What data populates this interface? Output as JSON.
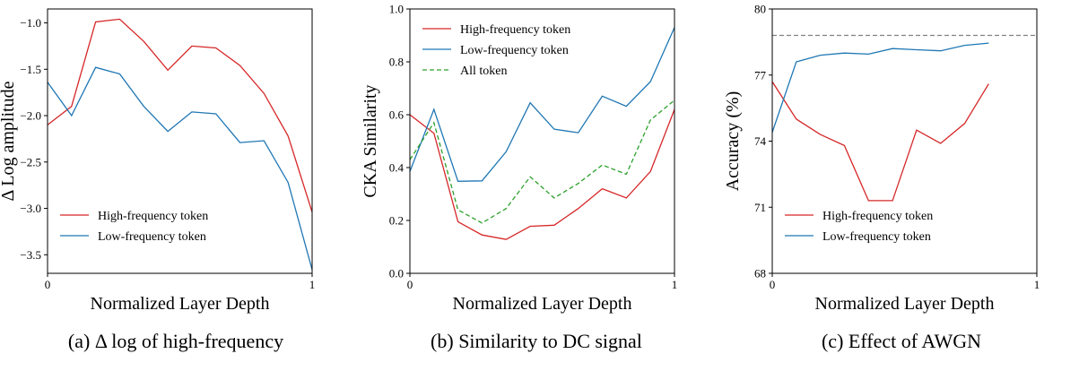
{
  "chart_data": [
    {
      "type": "line",
      "caption": "(a) Δ log of high-frequency",
      "xlabel": "Normalized Layer Depth",
      "ylabel": "Δ Log amplitude",
      "xlim": [
        0,
        1
      ],
      "ylim": [
        -3.7,
        -0.85
      ],
      "xticks": [
        "0",
        "1"
      ],
      "yticks": [
        -1.0,
        -1.5,
        -2.0,
        -2.5,
        -3.0,
        -3.5
      ],
      "ytick_labels": [
        "−1.0",
        "−1.5",
        "−2.0",
        "−2.5",
        "−3.0",
        "−3.5"
      ],
      "legend_position": "lower-left",
      "series": [
        {
          "name": "High-frequency token",
          "color": "#d62728",
          "style": "solid",
          "x": [
            0,
            0.0909,
            0.1818,
            0.2727,
            0.3636,
            0.4545,
            0.5454,
            0.6363,
            0.7272,
            0.8181,
            0.909,
            1.0
          ],
          "y": [
            -2.1,
            -1.9,
            -0.99,
            -0.96,
            -1.2,
            -1.51,
            -1.25,
            -1.27,
            -1.46,
            -1.76,
            -2.22,
            -3.04
          ]
        },
        {
          "name": "Low-frequency token",
          "color": "#1f77b4",
          "style": "solid",
          "x": [
            0,
            0.0909,
            0.1818,
            0.2727,
            0.3636,
            0.4545,
            0.5454,
            0.6363,
            0.7272,
            0.8181,
            0.909,
            1.0
          ],
          "y": [
            -1.64,
            -2.0,
            -1.48,
            -1.55,
            -1.9,
            -2.17,
            -1.96,
            -1.98,
            -2.29,
            -2.27,
            -2.72,
            -3.66
          ]
        }
      ]
    },
    {
      "type": "line",
      "caption": "(b) Similarity to DC signal",
      "xlabel": "Normalized Layer Depth",
      "ylabel": "CKA Similarity",
      "xlim": [
        0,
        1
      ],
      "ylim": [
        0.0,
        1.0
      ],
      "xticks": [
        "0",
        "1"
      ],
      "yticks": [
        0.0,
        0.2,
        0.4,
        0.6,
        0.8,
        1.0
      ],
      "ytick_labels": [
        "0.0",
        "0.2",
        "0.4",
        "0.6",
        "0.8",
        "1.0"
      ],
      "legend_position": "top-left",
      "series": [
        {
          "name": "High-frequency token",
          "color": "#d62728",
          "style": "solid",
          "x": [
            0,
            0.0909,
            0.1818,
            0.2727,
            0.3636,
            0.4545,
            0.5454,
            0.6363,
            0.7272,
            0.8181,
            0.909,
            1.0
          ],
          "y": [
            0.6,
            0.53,
            0.195,
            0.145,
            0.128,
            0.178,
            0.182,
            0.245,
            0.32,
            0.285,
            0.385,
            0.62
          ]
        },
        {
          "name": "Low-frequency token",
          "color": "#1f77b4",
          "style": "solid",
          "x": [
            0,
            0.0909,
            0.1818,
            0.2727,
            0.3636,
            0.4545,
            0.5454,
            0.6363,
            0.7272,
            0.8181,
            0.909,
            1.0
          ],
          "y": [
            0.385,
            0.62,
            0.348,
            0.35,
            0.46,
            0.645,
            0.545,
            0.532,
            0.67,
            0.632,
            0.725,
            0.93
          ]
        },
        {
          "name": "All token",
          "color": "#2ca02c",
          "style": "dashed",
          "x": [
            0,
            0.0909,
            0.1818,
            0.2727,
            0.3636,
            0.4545,
            0.5454,
            0.6363,
            0.7272,
            0.8181,
            0.909,
            1.0
          ],
          "y": [
            0.43,
            0.57,
            0.24,
            0.19,
            0.245,
            0.365,
            0.285,
            0.34,
            0.41,
            0.375,
            0.58,
            0.655
          ]
        }
      ]
    },
    {
      "type": "line",
      "caption": "(c) Effect of AWGN",
      "xlabel": "Normalized Layer Depth",
      "ylabel": "Accuracy (%)",
      "xlim": [
        0,
        1
      ],
      "ylim": [
        68,
        80
      ],
      "xticks": [
        "0",
        "1"
      ],
      "yticks": [
        68,
        71,
        74,
        77,
        80
      ],
      "ytick_labels": [
        "68",
        "71",
        "74",
        "77",
        "80"
      ],
      "legend_position": "lower-left",
      "reference_line": {
        "y": 78.8,
        "color": "#808080",
        "style": "dashed"
      },
      "series": [
        {
          "name": "High-frequency token",
          "color": "#d62728",
          "style": "solid",
          "x": [
            0,
            0.0909,
            0.1818,
            0.2727,
            0.3636,
            0.4545,
            0.5454,
            0.6363,
            0.7272,
            0.8181,
            0.909,
            1.0
          ],
          "y": [
            76.7,
            75.0,
            74.3,
            73.8,
            71.3,
            71.3,
            74.5,
            73.9,
            74.8,
            76.6,
            null,
            null
          ]
        },
        {
          "name": "Low-frequency token",
          "color": "#1f77b4",
          "style": "solid",
          "x": [
            0,
            0.0909,
            0.1818,
            0.2727,
            0.3636,
            0.4545,
            0.5454,
            0.6363,
            0.7272,
            0.8181,
            0.909,
            1.0
          ],
          "y": [
            74.4,
            77.6,
            77.9,
            78.0,
            77.95,
            78.2,
            78.15,
            78.1,
            78.35,
            78.45,
            null,
            null
          ]
        }
      ]
    }
  ]
}
